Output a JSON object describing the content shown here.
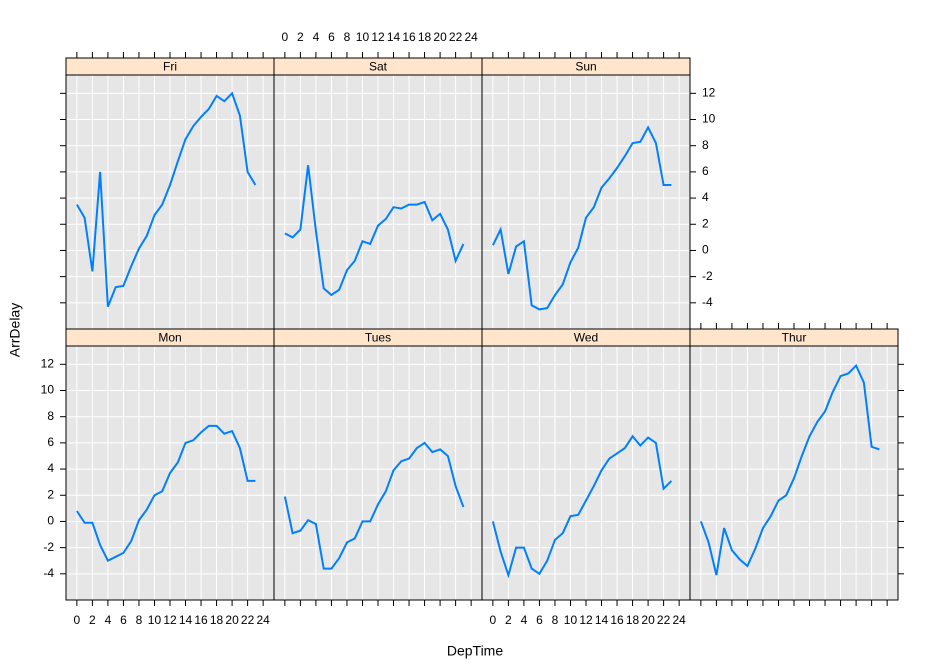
{
  "chart_data": {
    "type": "line",
    "xlabel": "DepTime",
    "ylabel": "ArrDelay",
    "x": [
      0,
      1,
      2,
      3,
      4,
      5,
      6,
      7,
      8,
      9,
      10,
      11,
      12,
      13,
      14,
      15,
      16,
      17,
      18,
      19,
      20,
      21,
      22,
      23
    ],
    "xlim": [
      -1.4,
      25.4
    ],
    "ylim": [
      -6.0,
      13.4
    ],
    "xticks": [
      0,
      2,
      4,
      6,
      8,
      10,
      12,
      14,
      16,
      18,
      20,
      22,
      24
    ],
    "yticks": [
      -4,
      -2,
      0,
      2,
      4,
      6,
      8,
      10,
      12
    ],
    "grid": true,
    "color": "#0080ff",
    "strip_color": "#ffe5cc",
    "panel_color": "#e6e6e6",
    "series": [
      {
        "name": "Mon",
        "values": [
          0.8,
          -0.1,
          -0.1,
          -1.8,
          -3.0,
          -2.7,
          -2.4,
          -1.5,
          0.1,
          0.9,
          2.0,
          2.3,
          3.7,
          4.5,
          6.0,
          6.2,
          6.8,
          7.3,
          7.3,
          6.7,
          6.9,
          5.6,
          3.1,
          3.1
        ]
      },
      {
        "name": "Tues",
        "values": [
          1.9,
          -0.9,
          -0.7,
          0.1,
          -0.2,
          -3.6,
          -3.6,
          -2.8,
          -1.6,
          -1.3,
          0.0,
          0.0,
          1.3,
          2.3,
          3.9,
          4.6,
          4.8,
          5.6,
          6.0,
          5.3,
          5.5,
          5.0,
          2.7,
          1.1
        ]
      },
      {
        "name": "Wed",
        "values": [
          0.0,
          -2.3,
          -4.1,
          -2.0,
          -2.0,
          -3.6,
          -4.0,
          -3.0,
          -1.4,
          -0.9,
          0.4,
          0.5,
          1.6,
          2.7,
          3.9,
          4.8,
          5.2,
          5.6,
          6.5,
          5.8,
          6.4,
          6.0,
          2.5,
          3.1
        ]
      },
      {
        "name": "Thur",
        "values": [
          0.0,
          -1.6,
          -4.1,
          -0.5,
          -2.2,
          -2.9,
          -3.4,
          -2.1,
          -0.5,
          0.4,
          1.6,
          2.0,
          3.3,
          5.0,
          6.5,
          7.6,
          8.4,
          9.9,
          11.1,
          11.3,
          11.9,
          10.6,
          5.7,
          5.5
        ]
      },
      {
        "name": "Fri",
        "values": [
          3.5,
          2.5,
          -1.6,
          6.0,
          -4.3,
          -2.8,
          -2.7,
          -1.2,
          0.15,
          1.1,
          2.7,
          3.5,
          5.0,
          6.8,
          8.5,
          9.5,
          10.2,
          10.8,
          11.8,
          11.4,
          12.0,
          10.3,
          6.0,
          5.0
        ]
      },
      {
        "name": "Sat",
        "values": [
          1.3,
          1.0,
          1.6,
          6.5,
          1.5,
          -2.9,
          -3.4,
          -3.0,
          -1.5,
          -0.8,
          0.7,
          0.5,
          1.9,
          2.4,
          3.3,
          3.2,
          3.5,
          3.5,
          3.7,
          2.3,
          2.8,
          1.6,
          -0.8,
          0.5
        ]
      },
      {
        "name": "Sun",
        "values": [
          0.4,
          1.6,
          -1.8,
          0.3,
          0.7,
          -4.2,
          -4.5,
          -4.4,
          -3.4,
          -2.6,
          -0.9,
          0.2,
          2.5,
          3.3,
          4.8,
          5.5,
          6.3,
          7.2,
          8.2,
          8.3,
          9.4,
          8.2,
          5.0,
          5.0
        ]
      }
    ]
  }
}
